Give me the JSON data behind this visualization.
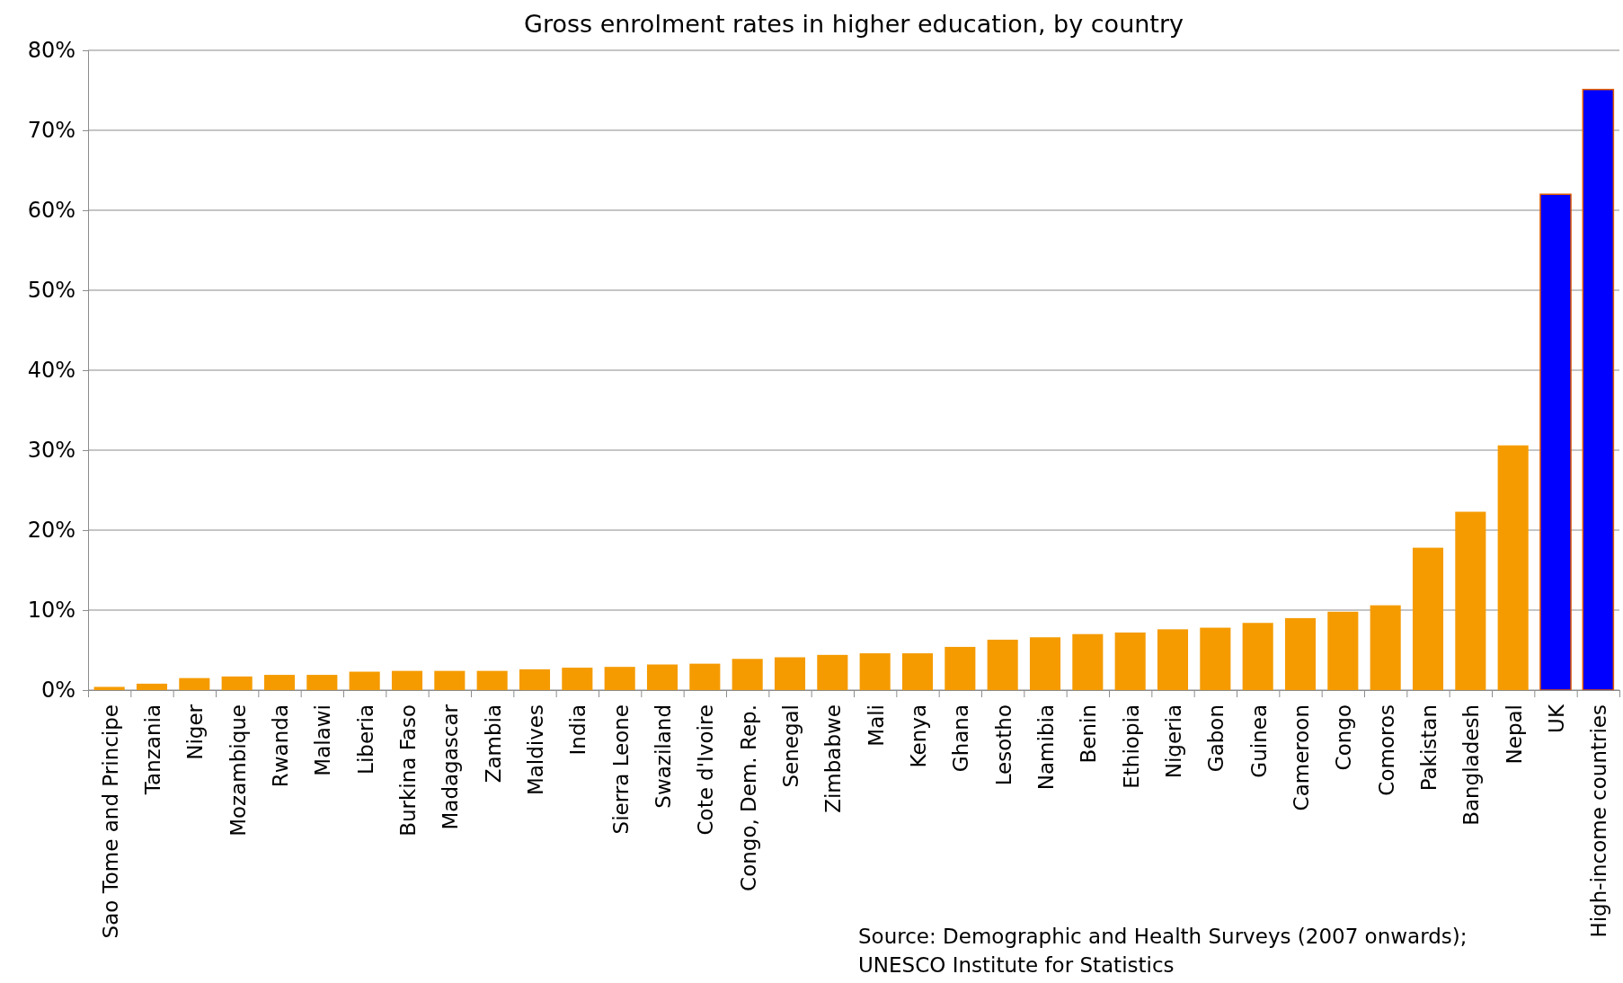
{
  "chart_data": {
    "type": "bar",
    "title": "Gross enrolment rates in higher education, by country",
    "categories": [
      "Sao Tome and Principe",
      "Tanzania",
      "Niger",
      "Mozambique",
      "Rwanda",
      "Malawi",
      "Liberia",
      "Burkina Faso",
      "Madagascar",
      "Zambia",
      "Maldives",
      "India",
      "Sierra Leone",
      "Swaziland",
      "Cote d'Ivoire",
      "Congo, Dem. Rep.",
      "Senegal",
      "Zimbabwe",
      "Mali",
      "Kenya",
      "Ghana",
      "Lesotho",
      "Namibia",
      "Benin",
      "Ethiopia",
      "Nigeria",
      "Gabon",
      "Guinea",
      "Cameroon",
      "Congo",
      "Comoros",
      "Pakistan",
      "Bangladesh",
      "Nepal",
      "UK",
      "High-income countries"
    ],
    "values": [
      0.4,
      0.8,
      1.5,
      1.7,
      1.9,
      1.9,
      2.3,
      2.4,
      2.4,
      2.4,
      2.6,
      2.8,
      2.9,
      3.2,
      3.3,
      3.9,
      4.1,
      4.4,
      4.6,
      4.6,
      5.4,
      6.3,
      6.6,
      7.0,
      7.2,
      7.6,
      7.8,
      8.4,
      9.0,
      9.8,
      10.6,
      17.8,
      22.3,
      30.6,
      62,
      75.1
    ],
    "colors": [
      "#f59b00",
      "#f59b00",
      "#f59b00",
      "#f59b00",
      "#f59b00",
      "#f59b00",
      "#f59b00",
      "#f59b00",
      "#f59b00",
      "#f59b00",
      "#f59b00",
      "#f59b00",
      "#f59b00",
      "#f59b00",
      "#f59b00",
      "#f59b00",
      "#f59b00",
      "#f59b00",
      "#f59b00",
      "#f59b00",
      "#f59b00",
      "#f59b00",
      "#f59b00",
      "#f59b00",
      "#f59b00",
      "#f59b00",
      "#f59b00",
      "#f59b00",
      "#f59b00",
      "#f59b00",
      "#f59b00",
      "#f59b00",
      "#f59b00",
      "#f59b00",
      "#0000ff",
      "#0000ff"
    ],
    "ylim": [
      0,
      80
    ],
    "yticks": [
      {
        "value": 0,
        "label": "0%"
      },
      {
        "value": 10,
        "label": "10%"
      },
      {
        "value": 20,
        "label": "20%"
      },
      {
        "value": 30,
        "label": "30%"
      },
      {
        "value": 40,
        "label": "40%"
      },
      {
        "value": 50,
        "label": "50%"
      },
      {
        "value": 60,
        "label": "60%"
      },
      {
        "value": 70,
        "label": "70%"
      },
      {
        "value": 80,
        "label": "80%"
      }
    ],
    "grid": "y",
    "annotations": [
      "Source: Demographic and Health Surveys (2007 onwards);\nUNESCO Institute for Statistics"
    ]
  }
}
